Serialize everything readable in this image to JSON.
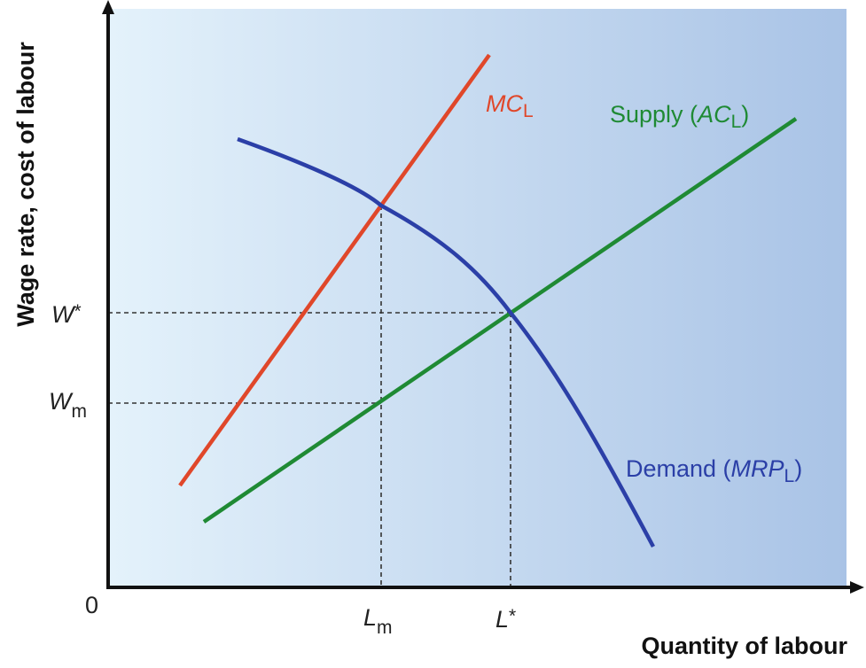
{
  "diagram": {
    "y_axis_label": "Wage rate, cost of labour",
    "x_axis_label": "Quantity of labour",
    "origin_label": "0",
    "y_ticks": [
      {
        "id": "w-star",
        "main": "W",
        "suffix": "*",
        "sub": ""
      },
      {
        "id": "w-m",
        "main": "W",
        "suffix": "",
        "sub": "m"
      }
    ],
    "x_ticks": [
      {
        "id": "l-m",
        "main": "L",
        "suffix": "",
        "sub": "m"
      },
      {
        "id": "l-star",
        "main": "L",
        "suffix": "*",
        "sub": ""
      }
    ],
    "curves": {
      "mc": {
        "italic": "MC",
        "sub": "L",
        "color": "#e0472a"
      },
      "supply": {
        "prefix": "Supply (",
        "italic": "AC",
        "sub": "L",
        "suffix": ")",
        "color": "#1f8a34"
      },
      "demand": {
        "prefix": "Demand (",
        "italic": "MRP",
        "sub": "L",
        "suffix": ")",
        "color": "#2b3fa7"
      }
    },
    "colors": {
      "background_left": "#e4f2fb",
      "background_right": "#a9c3e6",
      "axis": "#111111",
      "guide": "#333333"
    }
  }
}
